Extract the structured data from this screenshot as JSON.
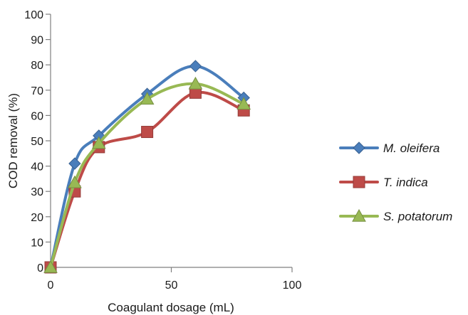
{
  "chart_data": {
    "type": "line",
    "xlabel": "Coagulant dosage (mL)",
    "ylabel": "COD removal (%)",
    "xlim": [
      0,
      100
    ],
    "ylim": [
      0,
      100
    ],
    "xticks": [
      0,
      50,
      100
    ],
    "yticks": [
      0,
      10,
      20,
      30,
      40,
      50,
      60,
      70,
      80,
      90,
      100
    ],
    "grid": false,
    "legend_position": "right",
    "smooth": true,
    "series": [
      {
        "name": "M. oleifera",
        "color": "#4a7ebb",
        "marker": "diamond",
        "x": [
          0,
          10,
          20,
          40,
          60,
          80
        ],
        "y": [
          0,
          41,
          52,
          68.5,
          79.5,
          67
        ]
      },
      {
        "name": "T. indica",
        "color": "#be4b48",
        "marker": "square",
        "x": [
          0,
          10,
          20,
          40,
          60,
          80
        ],
        "y": [
          0,
          30,
          47.5,
          53.5,
          69,
          62
        ]
      },
      {
        "name": "S. potatorum",
        "color": "#98b954",
        "marker": "triangle",
        "x": [
          0,
          10,
          20,
          40,
          60,
          80
        ],
        "y": [
          0,
          33.5,
          49,
          66.5,
          72.5,
          64.5
        ]
      }
    ]
  }
}
